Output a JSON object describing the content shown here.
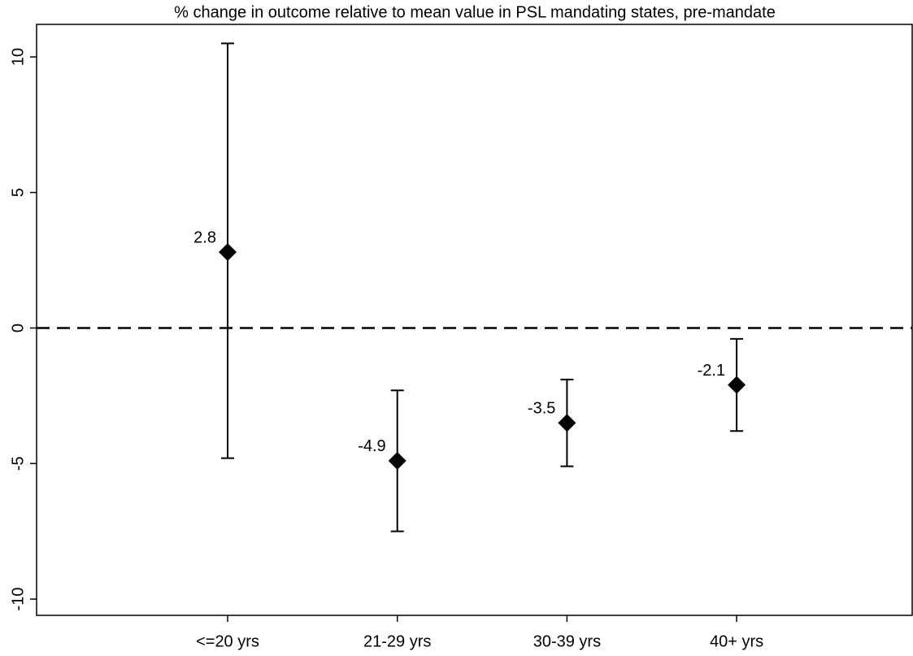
{
  "chart_data": {
    "type": "errorbar",
    "title": "% change in outcome relative to mean value in PSL mandating states, pre-mandate",
    "categories": [
      "<=20 yrs",
      "21-29 yrs",
      "30-39 yrs",
      "40+ yrs"
    ],
    "values": [
      2.8,
      -4.9,
      -3.5,
      -2.1
    ],
    "lower": [
      -4.8,
      -7.5,
      -5.1,
      -3.8
    ],
    "upper": [
      10.5,
      -2.3,
      -1.9,
      -0.4
    ],
    "color": "#000000",
    "reference_line": 0,
    "ylim": [
      -10.6,
      11.2
    ],
    "yticks": [
      -10,
      -5,
      0,
      5,
      10
    ],
    "grid": false
  }
}
